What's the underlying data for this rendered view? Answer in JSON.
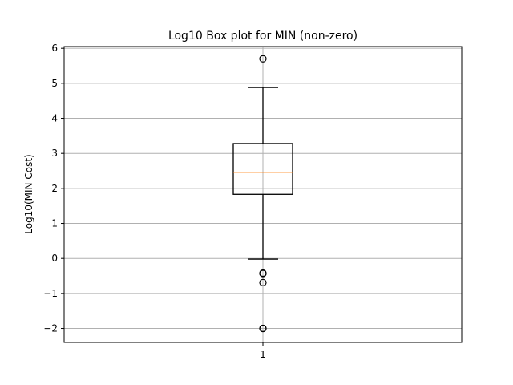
{
  "chart_data": {
    "type": "box",
    "title": "Log10 Box plot for MIN (non-zero)",
    "xlabel": "",
    "ylabel": "Log10(MIN Cost)",
    "categories": [
      "1"
    ],
    "ylim": [
      -2.4,
      6.05
    ],
    "yticks": [
      -2,
      -1,
      0,
      1,
      2,
      3,
      4,
      5,
      6
    ],
    "ytick_labels": [
      "−2",
      "−1",
      "0",
      "1",
      "2",
      "3",
      "4",
      "5",
      "6"
    ],
    "grid": true,
    "boxes": [
      {
        "category": "1",
        "whisker_low": -0.02,
        "q1": 1.83,
        "median": 2.46,
        "q3": 3.28,
        "whisker_high": 4.88,
        "outliers": [
          5.7,
          -0.42,
          -0.43,
          -0.69,
          -2.0,
          -2.0
        ]
      }
    ],
    "colors": {
      "box": "#000000",
      "median": "#ff7f0e",
      "grid": "#b0b0b0"
    }
  }
}
